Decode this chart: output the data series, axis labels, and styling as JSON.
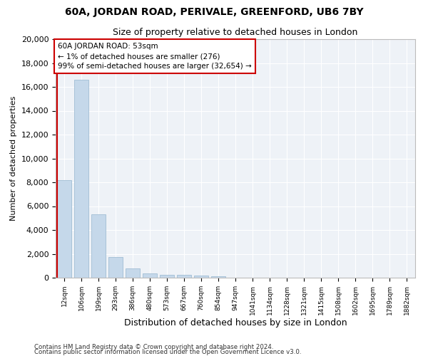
{
  "title1": "60A, JORDAN ROAD, PERIVALE, GREENFORD, UB6 7BY",
  "title2": "Size of property relative to detached houses in London",
  "xlabel": "Distribution of detached houses by size in London",
  "ylabel": "Number of detached properties",
  "bar_color": "#c5d8ea",
  "bar_edge_color": "#a0bdd4",
  "highlight_line_color": "#cc0000",
  "annotation_box_color": "#cc0000",
  "background_color": "#eef2f7",
  "categories": [
    "12sqm",
    "106sqm",
    "199sqm",
    "293sqm",
    "386sqm",
    "480sqm",
    "573sqm",
    "667sqm",
    "760sqm",
    "854sqm",
    "947sqm",
    "1041sqm",
    "1134sqm",
    "1228sqm",
    "1321sqm",
    "1415sqm",
    "1508sqm",
    "1602sqm",
    "1695sqm",
    "1789sqm",
    "1882sqm"
  ],
  "values": [
    8200,
    16600,
    5300,
    1750,
    750,
    350,
    230,
    210,
    170,
    140,
    0,
    0,
    0,
    0,
    0,
    0,
    0,
    0,
    0,
    0,
    0
  ],
  "ylim": [
    0,
    20000
  ],
  "yticks": [
    0,
    2000,
    4000,
    6000,
    8000,
    10000,
    12000,
    14000,
    16000,
    18000,
    20000
  ],
  "property_label": "60A JORDAN ROAD: 53sqm",
  "pct_smaller": "1% of detached houses are smaller (276)",
  "pct_larger": "99% of semi-detached houses are larger (32,654)",
  "footnote1": "Contains HM Land Registry data © Crown copyright and database right 2024.",
  "footnote2": "Contains public sector information licensed under the Open Government Licence v3.0."
}
